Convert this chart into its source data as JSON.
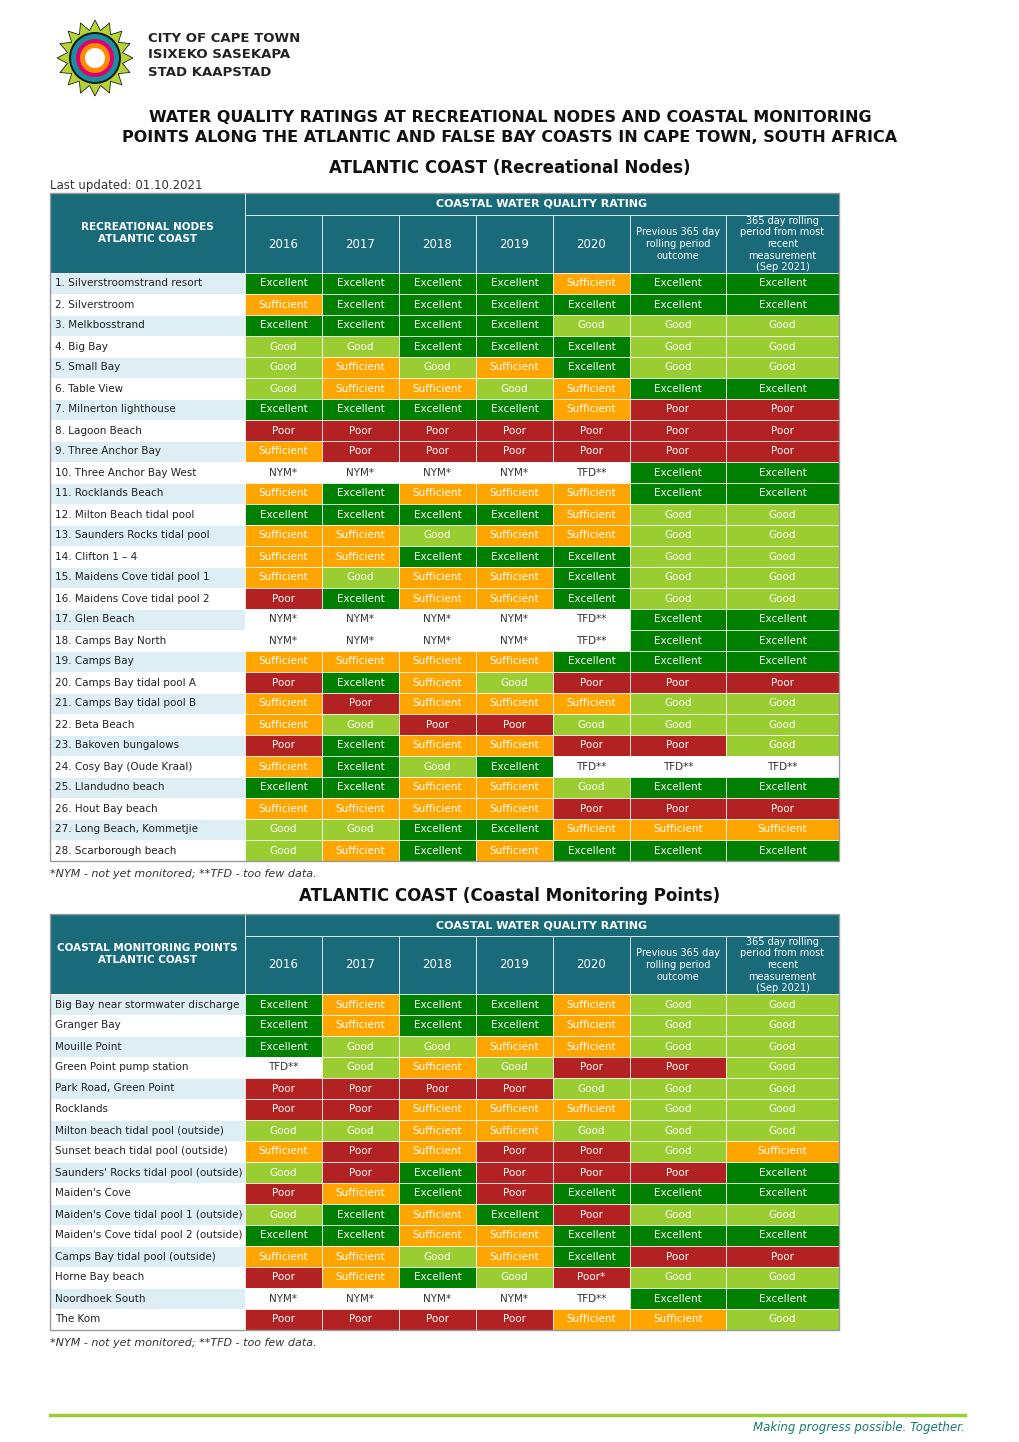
{
  "title_line1": "WATER QUALITY RATINGS AT RECREATIONAL NODES AND COASTAL MONITORING",
  "title_line2": "POINTS ALONG THE ATLANTIC AND FALSE BAY COASTS IN CAPE TOWN, SOUTH AFRICA",
  "section1_title": "ATLANTIC COAST (Recreational Nodes)",
  "last_updated": "Last updated: 01.10.2021",
  "section2_title": "ATLANTIC COAST (Coastal Monitoring Points)",
  "footer": "Making progress possible. Together.",
  "header_bg": "#1a6b7a",
  "row_bg_light": "#ddeef5",
  "row_bg_white": "#ffffff",
  "colors": {
    "Excellent": "#008000",
    "Good": "#9acd32",
    "Sufficient": "#ffa500",
    "Poor": "#b22222",
    "NYM*": "#ffffff",
    "TFD**": "#ffffff",
    "Poor*": "#b22222"
  },
  "table1_rows": [
    [
      "1. Silverstroomstrand resort",
      "Excellent",
      "Excellent",
      "Excellent",
      "Excellent",
      "Sufficient",
      "Excellent",
      "Excellent"
    ],
    [
      "2. Silverstroom",
      "Sufficient",
      "Excellent",
      "Excellent",
      "Excellent",
      "Excellent",
      "Excellent",
      "Excellent"
    ],
    [
      "3. Melkbosstrand",
      "Excellent",
      "Excellent",
      "Excellent",
      "Excellent",
      "Good",
      "Good",
      "Good"
    ],
    [
      "4. Big Bay",
      "Good",
      "Good",
      "Excellent",
      "Excellent",
      "Excellent",
      "Good",
      "Good"
    ],
    [
      "5. Small Bay",
      "Good",
      "Sufficient",
      "Good",
      "Sufficient",
      "Excellent",
      "Good",
      "Good"
    ],
    [
      "6. Table View",
      "Good",
      "Sufficient",
      "Sufficient",
      "Good",
      "Sufficient",
      "Excellent",
      "Excellent"
    ],
    [
      "7. Milnerton lighthouse",
      "Excellent",
      "Excellent",
      "Excellent",
      "Excellent",
      "Sufficient",
      "Poor",
      "Poor"
    ],
    [
      "8. Lagoon Beach",
      "Poor",
      "Poor",
      "Poor",
      "Poor",
      "Poor",
      "Poor",
      "Poor"
    ],
    [
      "9. Three Anchor Bay",
      "Sufficient",
      "Poor",
      "Poor",
      "Poor",
      "Poor",
      "Poor",
      "Poor"
    ],
    [
      "10. Three Anchor Bay West",
      "NYM*",
      "NYM*",
      "NYM*",
      "NYM*",
      "TFD**",
      "Excellent",
      "Excellent"
    ],
    [
      "11. Rocklands Beach",
      "Sufficient",
      "Excellent",
      "Sufficient",
      "Sufficient",
      "Sufficient",
      "Excellent",
      "Excellent"
    ],
    [
      "12. Milton Beach tidal pool",
      "Excellent",
      "Excellent",
      "Excellent",
      "Excellent",
      "Sufficient",
      "Good",
      "Good"
    ],
    [
      "13. Saunders Rocks tidal pool",
      "Sufficient",
      "Sufficient",
      "Good",
      "Sufficient",
      "Sufficient",
      "Good",
      "Good"
    ],
    [
      "14. Clifton 1 – 4",
      "Sufficient",
      "Sufficient",
      "Excellent",
      "Excellent",
      "Excellent",
      "Good",
      "Good"
    ],
    [
      "15. Maidens Cove tidal pool 1",
      "Sufficient",
      "Good",
      "Sufficient",
      "Sufficient",
      "Excellent",
      "Good",
      "Good"
    ],
    [
      "16. Maidens Cove tidal pool 2",
      "Poor",
      "Excellent",
      "Sufficient",
      "Sufficient",
      "Excellent",
      "Good",
      "Good"
    ],
    [
      "17. Glen Beach",
      "NYM*",
      "NYM*",
      "NYM*",
      "NYM*",
      "TFD**",
      "Excellent",
      "Excellent"
    ],
    [
      "18. Camps Bay North",
      "NYM*",
      "NYM*",
      "NYM*",
      "NYM*",
      "TFD**",
      "Excellent",
      "Excellent"
    ],
    [
      "19. Camps Bay",
      "Sufficient",
      "Sufficient",
      "Sufficient",
      "Sufficient",
      "Excellent",
      "Excellent",
      "Excellent"
    ],
    [
      "20. Camps Bay tidal pool A",
      "Poor",
      "Excellent",
      "Sufficient",
      "Good",
      "Poor",
      "Poor",
      "Poor"
    ],
    [
      "21. Camps Bay tidal pool B",
      "Sufficient",
      "Poor",
      "Sufficient",
      "Sufficient",
      "Sufficient",
      "Good",
      "Good"
    ],
    [
      "22. Beta Beach",
      "Sufficient",
      "Good",
      "Poor",
      "Poor",
      "Good",
      "Good",
      "Good"
    ],
    [
      "23. Bakoven bungalows",
      "Poor",
      "Excellent",
      "Sufficient",
      "Sufficient",
      "Poor",
      "Poor",
      "Good"
    ],
    [
      "24. Cosy Bay (Oude Kraal)",
      "Sufficient",
      "Excellent",
      "Good",
      "Excellent",
      "TFD**",
      "TFD**",
      "TFD**"
    ],
    [
      "25. Llandudno beach",
      "Excellent",
      "Excellent",
      "Sufficient",
      "Sufficient",
      "Good",
      "Excellent",
      "Excellent"
    ],
    [
      "26. Hout Bay beach",
      "Sufficient",
      "Sufficient",
      "Sufficient",
      "Sufficient",
      "Poor",
      "Poor",
      "Poor"
    ],
    [
      "27. Long Beach, Kommetjie",
      "Good",
      "Good",
      "Excellent",
      "Excellent",
      "Sufficient",
      "Sufficient",
      "Sufficient"
    ],
    [
      "28. Scarborough beach",
      "Good",
      "Sufficient",
      "Excellent",
      "Sufficient",
      "Excellent",
      "Excellent",
      "Excellent"
    ]
  ],
  "table2_rows": [
    [
      "Big Bay near stormwater discharge",
      "Excellent",
      "Sufficient",
      "Excellent",
      "Excellent",
      "Sufficient",
      "Good",
      "Good"
    ],
    [
      "Granger Bay",
      "Excellent",
      "Sufficient",
      "Excellent",
      "Excellent",
      "Sufficient",
      "Good",
      "Good"
    ],
    [
      "Mouille Point",
      "Excellent",
      "Good",
      "Good",
      "Sufficient",
      "Sufficient",
      "Good",
      "Good"
    ],
    [
      "Green Point pump station",
      "TFD**",
      "Good",
      "Sufficient",
      "Good",
      "Poor",
      "Poor",
      "Good"
    ],
    [
      "Park Road, Green Point",
      "Poor",
      "Poor",
      "Poor",
      "Poor",
      "Good",
      "Good",
      "Good"
    ],
    [
      "Rocklands",
      "Poor",
      "Poor",
      "Sufficient",
      "Sufficient",
      "Sufficient",
      "Good",
      "Good"
    ],
    [
      "Milton beach tidal pool (outside)",
      "Good",
      "Good",
      "Sufficient",
      "Sufficient",
      "Good",
      "Good",
      "Good"
    ],
    [
      "Sunset beach tidal pool (outside)",
      "Sufficient",
      "Poor",
      "Sufficient",
      "Poor",
      "Poor",
      "Good",
      "Sufficient"
    ],
    [
      "Saunders' Rocks tidal pool (outside)",
      "Good",
      "Poor",
      "Excellent",
      "Poor",
      "Poor",
      "Poor",
      "Excellent"
    ],
    [
      "Maiden's Cove",
      "Poor",
      "Sufficient",
      "Excellent",
      "Poor",
      "Excellent",
      "Excellent",
      "Excellent"
    ],
    [
      "Maiden's Cove tidal pool 1 (outside)",
      "Good",
      "Excellent",
      "Sufficient",
      "Excellent",
      "Poor",
      "Good",
      "Good"
    ],
    [
      "Maiden's Cove tidal pool 2 (outside)",
      "Excellent",
      "Excellent",
      "Sufficient",
      "Sufficient",
      "Excellent",
      "Excellent",
      "Excellent"
    ],
    [
      "Camps Bay tidal pool (outside)",
      "Sufficient",
      "Sufficient",
      "Good",
      "Sufficient",
      "Excellent",
      "Poor",
      "Poor"
    ],
    [
      "Horne Bay beach",
      "Poor",
      "Sufficient",
      "Excellent",
      "Good",
      "Poor*",
      "Good",
      "Good"
    ],
    [
      "Noordhoek South",
      "NYM*",
      "NYM*",
      "NYM*",
      "NYM*",
      "TFD**",
      "Excellent",
      "Excellent"
    ],
    [
      "The Kom",
      "Poor",
      "Poor",
      "Poor",
      "Poor",
      "Sufficient",
      "Sufficient",
      "Good"
    ]
  ]
}
